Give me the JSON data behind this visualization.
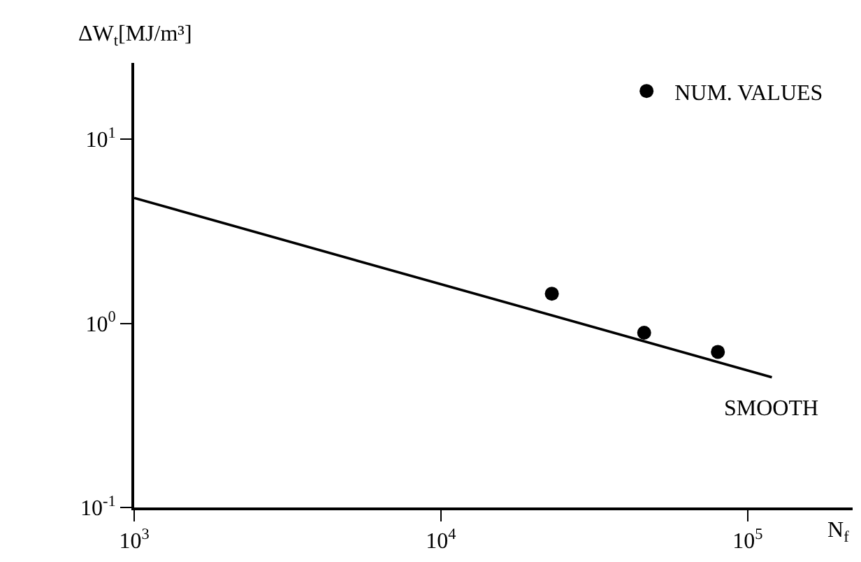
{
  "chart_data": {
    "type": "scatter",
    "ylabel": "ΔW$_{t}$[MJ/m³]",
    "xlabel": "N$_{f}$",
    "log": "xy",
    "xlim": [
      1000,
      220000
    ],
    "ylim": [
      0.1,
      26
    ],
    "xticks": [
      {
        "value": 1000,
        "label": "10$^{3}$"
      },
      {
        "value": 10000,
        "label": "10$^{4}$"
      },
      {
        "value": 100000,
        "label": "10$^{5}$"
      }
    ],
    "yticks": [
      {
        "value": 0.1,
        "label": "10$^{-1}$"
      },
      {
        "value": 1,
        "label": "10$^{0}$"
      },
      {
        "value": 10,
        "label": "10$^{1}$"
      }
    ],
    "legend": "top right",
    "series": [
      {
        "name": "NUM. VALUES",
        "marker": "circle",
        "color": "#000000",
        "x": [
          23000,
          46000,
          80000
        ],
        "values": [
          1.45,
          0.89,
          0.7
        ]
      },
      {
        "name": "SMOOTH",
        "type": "line",
        "marker": "none",
        "line_style": "solid",
        "color": "#000000",
        "x": [
          1000,
          120000
        ],
        "values": [
          4.8,
          0.51
        ]
      }
    ]
  }
}
